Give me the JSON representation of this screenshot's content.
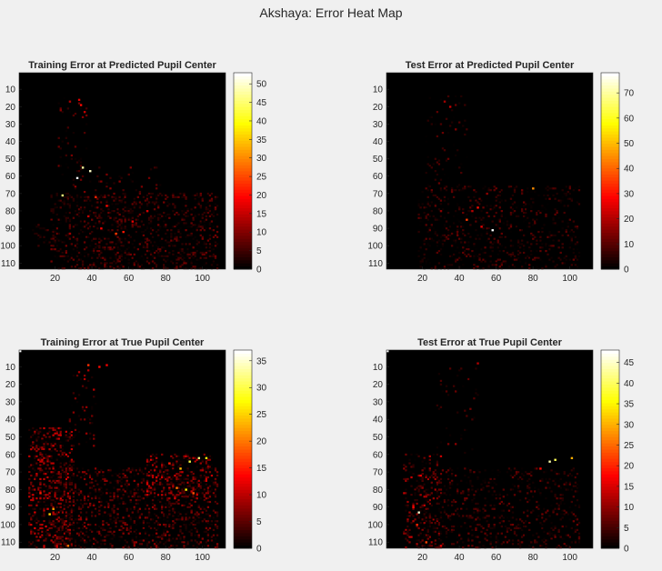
{
  "figure": {
    "suptitle": "Akshaya: Error Heat Map"
  },
  "chart_data": [
    {
      "type": "heatmap",
      "title": "Training Error at Predicted Pupil Center",
      "xlabel": "",
      "ylabel": "",
      "xlim": [
        1,
        112
      ],
      "ylim": [
        1,
        113
      ],
      "xticks": [
        20,
        40,
        60,
        80,
        100
      ],
      "yticks": [
        10,
        20,
        30,
        40,
        50,
        60,
        70,
        80,
        90,
        100,
        110
      ],
      "colormap": "hot",
      "clim": [
        0,
        53
      ],
      "colorbar_ticks": [
        0,
        5,
        10,
        15,
        20,
        25,
        30,
        35,
        40,
        45,
        50
      ],
      "background": "#000000",
      "hotspots": [
        {
          "x": 32,
          "y": 61,
          "value": 53
        },
        {
          "x": 39,
          "y": 57,
          "value": 50
        },
        {
          "x": 35,
          "y": 55,
          "value": 48
        },
        {
          "x": 24,
          "y": 71,
          "value": 46
        },
        {
          "x": 34,
          "y": 19,
          "value": 20
        },
        {
          "x": 33,
          "y": 16,
          "value": 17
        },
        {
          "x": 36,
          "y": 23,
          "value": 15
        },
        {
          "x": 28,
          "y": 17,
          "value": 13
        },
        {
          "x": 23,
          "y": 22,
          "value": 10
        },
        {
          "x": 42,
          "y": 72,
          "value": 22
        },
        {
          "x": 48,
          "y": 77,
          "value": 20
        },
        {
          "x": 53,
          "y": 93,
          "value": 24
        },
        {
          "x": 57,
          "y": 92,
          "value": 21
        },
        {
          "x": 62,
          "y": 86,
          "value": 18
        },
        {
          "x": 45,
          "y": 90,
          "value": 19
        },
        {
          "x": 70,
          "y": 80,
          "value": 16
        },
        {
          "x": 38,
          "y": 83,
          "value": 15
        },
        {
          "x": 28,
          "y": 93,
          "value": 12
        }
      ],
      "regions": [
        {
          "x0": 22,
          "x1": 37,
          "y0": 14,
          "y1": 60,
          "density": 0.06,
          "max": 10
        },
        {
          "x0": 18,
          "x1": 108,
          "y0": 70,
          "y1": 113,
          "density": 0.33,
          "max": 9
        },
        {
          "x0": 30,
          "x1": 80,
          "y0": 55,
          "y1": 70,
          "density": 0.08,
          "max": 12
        },
        {
          "x0": 8,
          "x1": 20,
          "y0": 88,
          "y1": 100,
          "density": 0.15,
          "max": 6
        }
      ]
    },
    {
      "type": "heatmap",
      "title": "Test Error at Predicted Pupil Center",
      "xlabel": "",
      "ylabel": "",
      "xlim": [
        1,
        112
      ],
      "ylim": [
        1,
        113
      ],
      "xticks": [
        20,
        40,
        60,
        80,
        100
      ],
      "yticks": [
        10,
        20,
        30,
        40,
        50,
        60,
        70,
        80,
        90,
        100,
        110
      ],
      "colormap": "hot",
      "clim": [
        0,
        78
      ],
      "colorbar_ticks": [
        0,
        10,
        20,
        30,
        40,
        50,
        60,
        70
      ],
      "background": "#000000",
      "hotspots": [
        {
          "x": 58,
          "y": 91,
          "value": 78
        },
        {
          "x": 80,
          "y": 67,
          "value": 45
        },
        {
          "x": 44,
          "y": 85,
          "value": 35
        },
        {
          "x": 50,
          "y": 78,
          "value": 30
        },
        {
          "x": 35,
          "y": 20,
          "value": 22
        },
        {
          "x": 32,
          "y": 17,
          "value": 18
        },
        {
          "x": 38,
          "y": 33,
          "value": 14
        },
        {
          "x": 52,
          "y": 89,
          "value": 26
        },
        {
          "x": 47,
          "y": 80,
          "value": 20
        },
        {
          "x": 55,
          "y": 70,
          "value": 16
        },
        {
          "x": 30,
          "y": 80,
          "value": 15
        }
      ],
      "regions": [
        {
          "x0": 22,
          "x1": 44,
          "y0": 14,
          "y1": 68,
          "density": 0.06,
          "max": 12
        },
        {
          "x0": 18,
          "x1": 105,
          "y0": 66,
          "y1": 113,
          "density": 0.2,
          "max": 12
        }
      ]
    },
    {
      "type": "heatmap",
      "title": "Training Error at True Pupil Center",
      "xlabel": "",
      "ylabel": "",
      "xlim": [
        1,
        112
      ],
      "ylim": [
        1,
        113
      ],
      "xticks": [
        20,
        40,
        60,
        80,
        100
      ],
      "yticks": [
        10,
        20,
        30,
        40,
        50,
        60,
        70,
        80,
        90,
        100,
        110
      ],
      "colormap": "hot",
      "clim": [
        0,
        37
      ],
      "colorbar_ticks": [
        0,
        5,
        10,
        15,
        20,
        25,
        30,
        35
      ],
      "background": "#000000",
      "hotspots": [
        {
          "x": 1,
          "y": 1,
          "value": 37
        },
        {
          "x": 98,
          "y": 62,
          "value": 32
        },
        {
          "x": 93,
          "y": 64,
          "value": 30
        },
        {
          "x": 102,
          "y": 62,
          "value": 27
        },
        {
          "x": 91,
          "y": 80,
          "value": 27
        },
        {
          "x": 88,
          "y": 68,
          "value": 24
        },
        {
          "x": 86,
          "y": 79,
          "value": 20
        },
        {
          "x": 17,
          "y": 94,
          "value": 25
        },
        {
          "x": 19,
          "y": 91,
          "value": 22
        },
        {
          "x": 27,
          "y": 112,
          "value": 20
        },
        {
          "x": 38,
          "y": 9,
          "value": 16
        },
        {
          "x": 44,
          "y": 10,
          "value": 14
        },
        {
          "x": 48,
          "y": 9,
          "value": 13
        },
        {
          "x": 12,
          "y": 82,
          "value": 15
        },
        {
          "x": 95,
          "y": 82,
          "value": 18
        },
        {
          "x": 82,
          "y": 65,
          "value": 15
        }
      ],
      "regions": [
        {
          "x0": 6,
          "x1": 30,
          "y0": 45,
          "y1": 113,
          "density": 0.4,
          "max": 12
        },
        {
          "x0": 20,
          "x1": 108,
          "y0": 68,
          "y1": 113,
          "density": 0.33,
          "max": 8
        },
        {
          "x0": 28,
          "x1": 42,
          "y0": 10,
          "y1": 55,
          "density": 0.08,
          "max": 10
        },
        {
          "x0": 70,
          "x1": 105,
          "y0": 60,
          "y1": 85,
          "density": 0.3,
          "max": 12
        }
      ]
    },
    {
      "type": "heatmap",
      "title": "Test Error at True Pupil Center",
      "xlabel": "",
      "ylabel": "",
      "xlim": [
        1,
        112
      ],
      "ylim": [
        1,
        113
      ],
      "xticks": [
        20,
        40,
        60,
        80,
        100
      ],
      "yticks": [
        10,
        20,
        30,
        40,
        50,
        60,
        70,
        80,
        90,
        100,
        110
      ],
      "colormap": "hot",
      "clim": [
        0,
        48
      ],
      "colorbar_ticks": [
        0,
        5,
        10,
        15,
        20,
        25,
        30,
        35,
        40,
        45
      ],
      "background": "#000000",
      "hotspots": [
        {
          "x": 1,
          "y": 1,
          "value": 48
        },
        {
          "x": 18,
          "y": 93,
          "value": 46
        },
        {
          "x": 89,
          "y": 64,
          "value": 44
        },
        {
          "x": 92,
          "y": 63,
          "value": 40
        },
        {
          "x": 101,
          "y": 62,
          "value": 30
        },
        {
          "x": 22,
          "y": 110,
          "value": 22
        },
        {
          "x": 17,
          "y": 100,
          "value": 20
        },
        {
          "x": 15,
          "y": 90,
          "value": 18
        },
        {
          "x": 19,
          "y": 72,
          "value": 16
        },
        {
          "x": 84,
          "y": 68,
          "value": 18
        },
        {
          "x": 30,
          "y": 112,
          "value": 15
        },
        {
          "x": 50,
          "y": 8,
          "value": 12
        }
      ],
      "regions": [
        {
          "x0": 10,
          "x1": 30,
          "y0": 60,
          "y1": 113,
          "density": 0.25,
          "max": 14
        },
        {
          "x0": 20,
          "x1": 105,
          "y0": 68,
          "y1": 113,
          "density": 0.22,
          "max": 8
        },
        {
          "x0": 28,
          "x1": 50,
          "y0": 10,
          "y1": 60,
          "density": 0.05,
          "max": 10
        }
      ]
    }
  ]
}
